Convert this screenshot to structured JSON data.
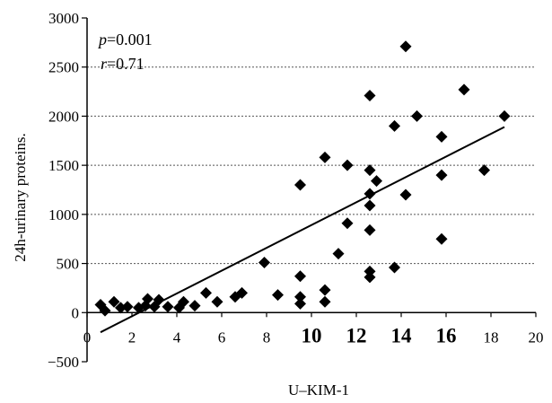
{
  "chart_data": {
    "type": "scatter",
    "title": "",
    "xlabel": "U–KIM-1",
    "ylabel": "24h-urinary proteins.",
    "xlim": [
      0,
      20
    ],
    "ylim": [
      -500,
      3000
    ],
    "grid": "horizontal dashed",
    "x_ticks": [
      {
        "label": "0",
        "value": 0,
        "emphasis": false
      },
      {
        "label": "2",
        "value": 2,
        "emphasis": false
      },
      {
        "label": "4",
        "value": 4,
        "emphasis": false
      },
      {
        "label": "6",
        "value": 6,
        "emphasis": false
      },
      {
        "label": "8",
        "value": 8,
        "emphasis": false
      },
      {
        "label": "10",
        "value": 10,
        "emphasis": true
      },
      {
        "label": "12",
        "value": 12,
        "emphasis": true
      },
      {
        "label": "14",
        "value": 14,
        "emphasis": true
      },
      {
        "label": "16",
        "value": 16,
        "emphasis": true
      },
      {
        "label": "18",
        "value": 18,
        "emphasis": false
      },
      {
        "label": "20",
        "value": 20,
        "emphasis": false
      }
    ],
    "y_ticks": [
      "3000",
      "2500",
      "2000",
      "1500",
      "1000",
      "500",
      "0",
      "−500"
    ],
    "annotations": {
      "p_symbol": "p",
      "p_value": "=0.001",
      "r_symbol": "r",
      "r_value": "=0.71"
    },
    "marker": "diamond",
    "marker_color": "#000000",
    "points": [
      {
        "x": 0.6,
        "y": 80
      },
      {
        "x": 0.8,
        "y": 20
      },
      {
        "x": 1.2,
        "y": 110
      },
      {
        "x": 1.5,
        "y": 50
      },
      {
        "x": 1.8,
        "y": 60
      },
      {
        "x": 2.3,
        "y": 50
      },
      {
        "x": 2.6,
        "y": 70
      },
      {
        "x": 2.7,
        "y": 140
      },
      {
        "x": 3.0,
        "y": 60
      },
      {
        "x": 3.2,
        "y": 130
      },
      {
        "x": 3.6,
        "y": 60
      },
      {
        "x": 4.1,
        "y": 50
      },
      {
        "x": 4.3,
        "y": 110
      },
      {
        "x": 4.8,
        "y": 70
      },
      {
        "x": 5.3,
        "y": 200
      },
      {
        "x": 5.8,
        "y": 110
      },
      {
        "x": 6.6,
        "y": 160
      },
      {
        "x": 6.9,
        "y": 200
      },
      {
        "x": 7.9,
        "y": 510
      },
      {
        "x": 8.5,
        "y": 180
      },
      {
        "x": 9.5,
        "y": 1300
      },
      {
        "x": 9.5,
        "y": 370
      },
      {
        "x": 9.5,
        "y": 160
      },
      {
        "x": 9.5,
        "y": 90
      },
      {
        "x": 10.6,
        "y": 1580
      },
      {
        "x": 10.6,
        "y": 230
      },
      {
        "x": 10.6,
        "y": 110
      },
      {
        "x": 11.2,
        "y": 600
      },
      {
        "x": 11.6,
        "y": 1500
      },
      {
        "x": 11.6,
        "y": 910
      },
      {
        "x": 12.6,
        "y": 2210
      },
      {
        "x": 12.6,
        "y": 1450
      },
      {
        "x": 12.6,
        "y": 1210
      },
      {
        "x": 12.6,
        "y": 1090
      },
      {
        "x": 12.6,
        "y": 840
      },
      {
        "x": 12.6,
        "y": 420
      },
      {
        "x": 12.6,
        "y": 360
      },
      {
        "x": 12.9,
        "y": 1340
      },
      {
        "x": 13.7,
        "y": 1900
      },
      {
        "x": 13.7,
        "y": 460
      },
      {
        "x": 14.2,
        "y": 2710
      },
      {
        "x": 14.2,
        "y": 1200
      },
      {
        "x": 14.7,
        "y": 2000
      },
      {
        "x": 15.8,
        "y": 1790
      },
      {
        "x": 15.8,
        "y": 1400
      },
      {
        "x": 15.8,
        "y": 750
      },
      {
        "x": 16.8,
        "y": 2270
      },
      {
        "x": 17.7,
        "y": 1450
      },
      {
        "x": 18.6,
        "y": 2000
      }
    ],
    "fit_line": {
      "x1": 0.6,
      "y1": -200,
      "x2": 18.6,
      "y2": 1890
    }
  }
}
